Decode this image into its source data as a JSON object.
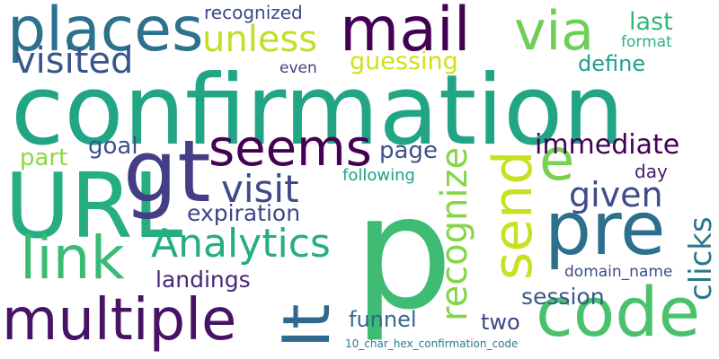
{
  "words": [
    {
      "text": "confirmation",
      "color": "#21a585",
      "vertical": false
    },
    {
      "text": "p",
      "color": "#3fbc73",
      "vertical": false
    },
    {
      "text": "URL",
      "color": "#26ad81",
      "vertical": false
    },
    {
      "text": "gt",
      "color": "#433e85",
      "vertical": false
    },
    {
      "text": "places",
      "color": "#2c728e",
      "vertical": false
    },
    {
      "text": "mail",
      "color": "#440154",
      "vertical": false
    },
    {
      "text": "via",
      "color": "#6ece58",
      "vertical": false
    },
    {
      "text": "pre",
      "color": "#2d708e",
      "vertical": false
    },
    {
      "text": "code",
      "color": "#4ac16d",
      "vertical": false
    },
    {
      "text": "multiple",
      "color": "#471365",
      "vertical": false
    },
    {
      "text": "link",
      "color": "#3aba76",
      "vertical": false
    },
    {
      "text": "seems",
      "color": "#440154",
      "vertical": false
    },
    {
      "text": "It",
      "color": "#31688e",
      "vertical": true
    },
    {
      "text": "send",
      "color": "#c8e020",
      "vertical": true
    },
    {
      "text": "e",
      "color": "#7ad151",
      "vertical": false
    },
    {
      "text": "Analytics",
      "color": "#26ad81",
      "vertical": false
    },
    {
      "text": "recognize",
      "color": "#86d549",
      "vertical": true
    },
    {
      "text": "visited",
      "color": "#39558c",
      "vertical": false
    },
    {
      "text": "unless",
      "color": "#c2df23",
      "vertical": false
    },
    {
      "text": "visit",
      "color": "#3e4989",
      "vertical": false
    },
    {
      "text": "given",
      "color": "#3e4c8a",
      "vertical": false
    },
    {
      "text": "immediate",
      "color": "#440154",
      "vertical": false
    },
    {
      "text": "clicks",
      "color": "#2a788e",
      "vertical": true
    },
    {
      "text": "guessing",
      "color": "#d0e11c",
      "vertical": false
    },
    {
      "text": "expiration",
      "color": "#414487",
      "vertical": false
    },
    {
      "text": "landings",
      "color": "#482878",
      "vertical": false
    },
    {
      "text": "session",
      "color": "#38588c",
      "vertical": false
    },
    {
      "text": "last",
      "color": "#35b779",
      "vertical": false
    },
    {
      "text": "define",
      "color": "#1f9e89",
      "vertical": false
    },
    {
      "text": "part",
      "color": "#8fd744",
      "vertical": false
    },
    {
      "text": "goal",
      "color": "#3b528b",
      "vertical": false
    },
    {
      "text": "page",
      "color": "#3b528b",
      "vertical": false
    },
    {
      "text": "funnel",
      "color": "#31688e",
      "vertical": false
    },
    {
      "text": "two",
      "color": "#404688",
      "vertical": false
    },
    {
      "text": "day",
      "color": "#481a6c",
      "vertical": false
    },
    {
      "text": "recognized",
      "color": "#3e4989",
      "vertical": false
    },
    {
      "text": "format",
      "color": "#2db27d",
      "vertical": false
    },
    {
      "text": "even",
      "color": "#443a83",
      "vertical": false
    },
    {
      "text": "following",
      "color": "#1fa088",
      "vertical": false
    },
    {
      "text": "domain_name",
      "color": "#3d4e8a",
      "vertical": false
    },
    {
      "text": "10_char_hex_confirmation_code",
      "color": "#287d8e",
      "vertical": false
    }
  ]
}
